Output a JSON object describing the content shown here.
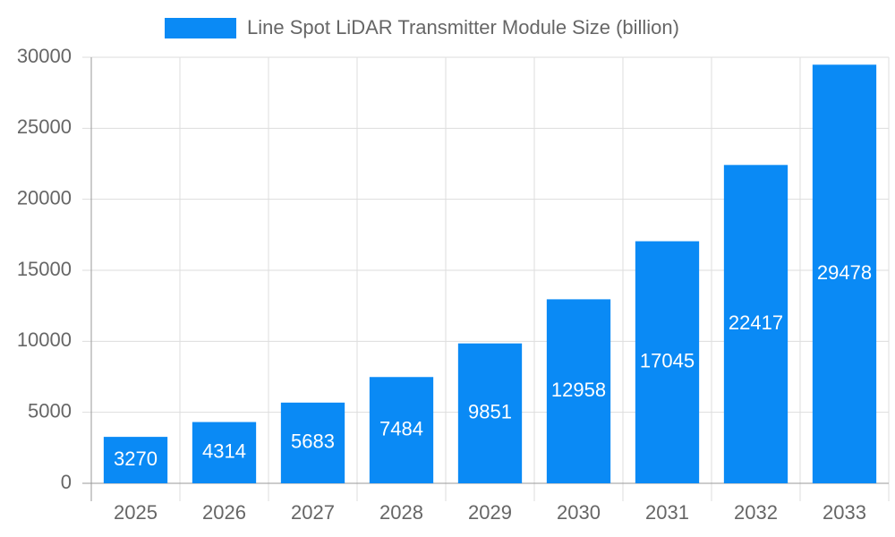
{
  "chart_data": {
    "type": "bar",
    "categories": [
      "2025",
      "2026",
      "2027",
      "2028",
      "2029",
      "2030",
      "2031",
      "2032",
      "2033"
    ],
    "series": [
      {
        "name": "Line Spot LiDAR Transmitter Module Size (billion)",
        "color": "#0a8af5",
        "values": [
          3270,
          4314,
          5683,
          7484,
          9851,
          12958,
          17045,
          22417,
          29478
        ]
      }
    ],
    "ylim": [
      0,
      30000
    ],
    "yticks": [
      0,
      5000,
      10000,
      15000,
      20000,
      25000,
      30000
    ],
    "grid": true,
    "legend": "top",
    "value_label_color": "#ffffff"
  }
}
